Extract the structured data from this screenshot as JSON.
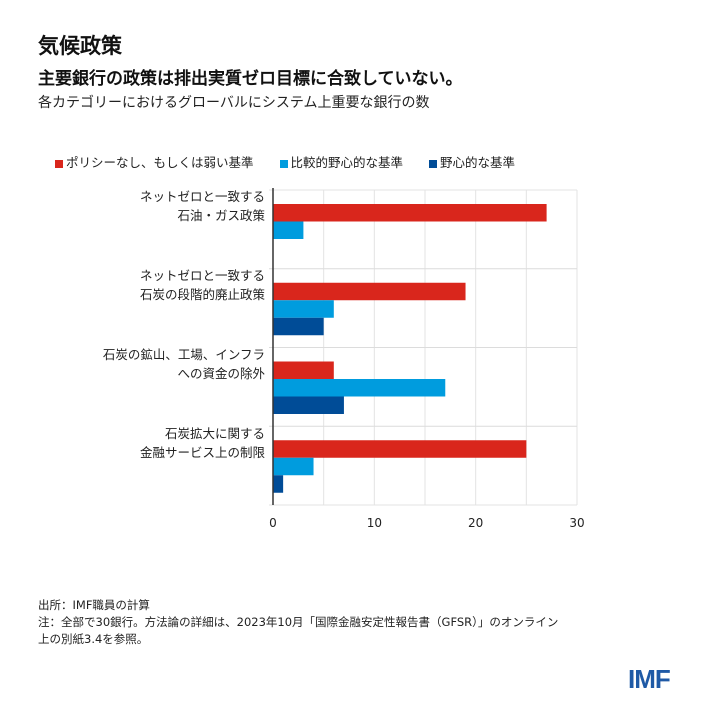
{
  "header": {
    "title": "気候政策",
    "subtitle": "主要銀行の政策は排出実質ゼロ目標に合致していない。",
    "description": "各カテゴリーにおけるグローバルにシステム上重要な銀行の数"
  },
  "chart_data": {
    "type": "bar",
    "orientation": "horizontal",
    "categories": [
      [
        "ネットゼロと一致する",
        "石油・ガス政策"
      ],
      [
        "ネットゼロと一致する",
        "石炭の段階的廃止政策"
      ],
      [
        "石炭の鉱山、工場、インフラ",
        "への資金の除外"
      ],
      [
        "石炭拡大に関する",
        "金融サービス上の制限"
      ]
    ],
    "series": [
      {
        "name": "ポリシーなし、もしくは弱い基準",
        "color": "#d9261c",
        "values": [
          27,
          19,
          6,
          25
        ]
      },
      {
        "name": "比較的野心的な基準",
        "color": "#009cde",
        "values": [
          3,
          6,
          17,
          4
        ]
      },
      {
        "name": "野心的な基準",
        "color": "#004c97",
        "values": [
          0,
          5,
          7,
          1
        ]
      }
    ],
    "xlim": [
      0,
      30
    ],
    "xticks": [
      "0",
      "10",
      "20",
      "30"
    ],
    "grid": true,
    "legend": "top"
  },
  "footer": {
    "source": "出所：IMF職員の計算",
    "note_line1": "注：全部で30銀行。方法論の詳細は、2023年10月「国際金融安定性報告書（GFSR）」のオンライン",
    "note_line2": "上の別紙3.4を参照。",
    "logo": "IMF"
  }
}
